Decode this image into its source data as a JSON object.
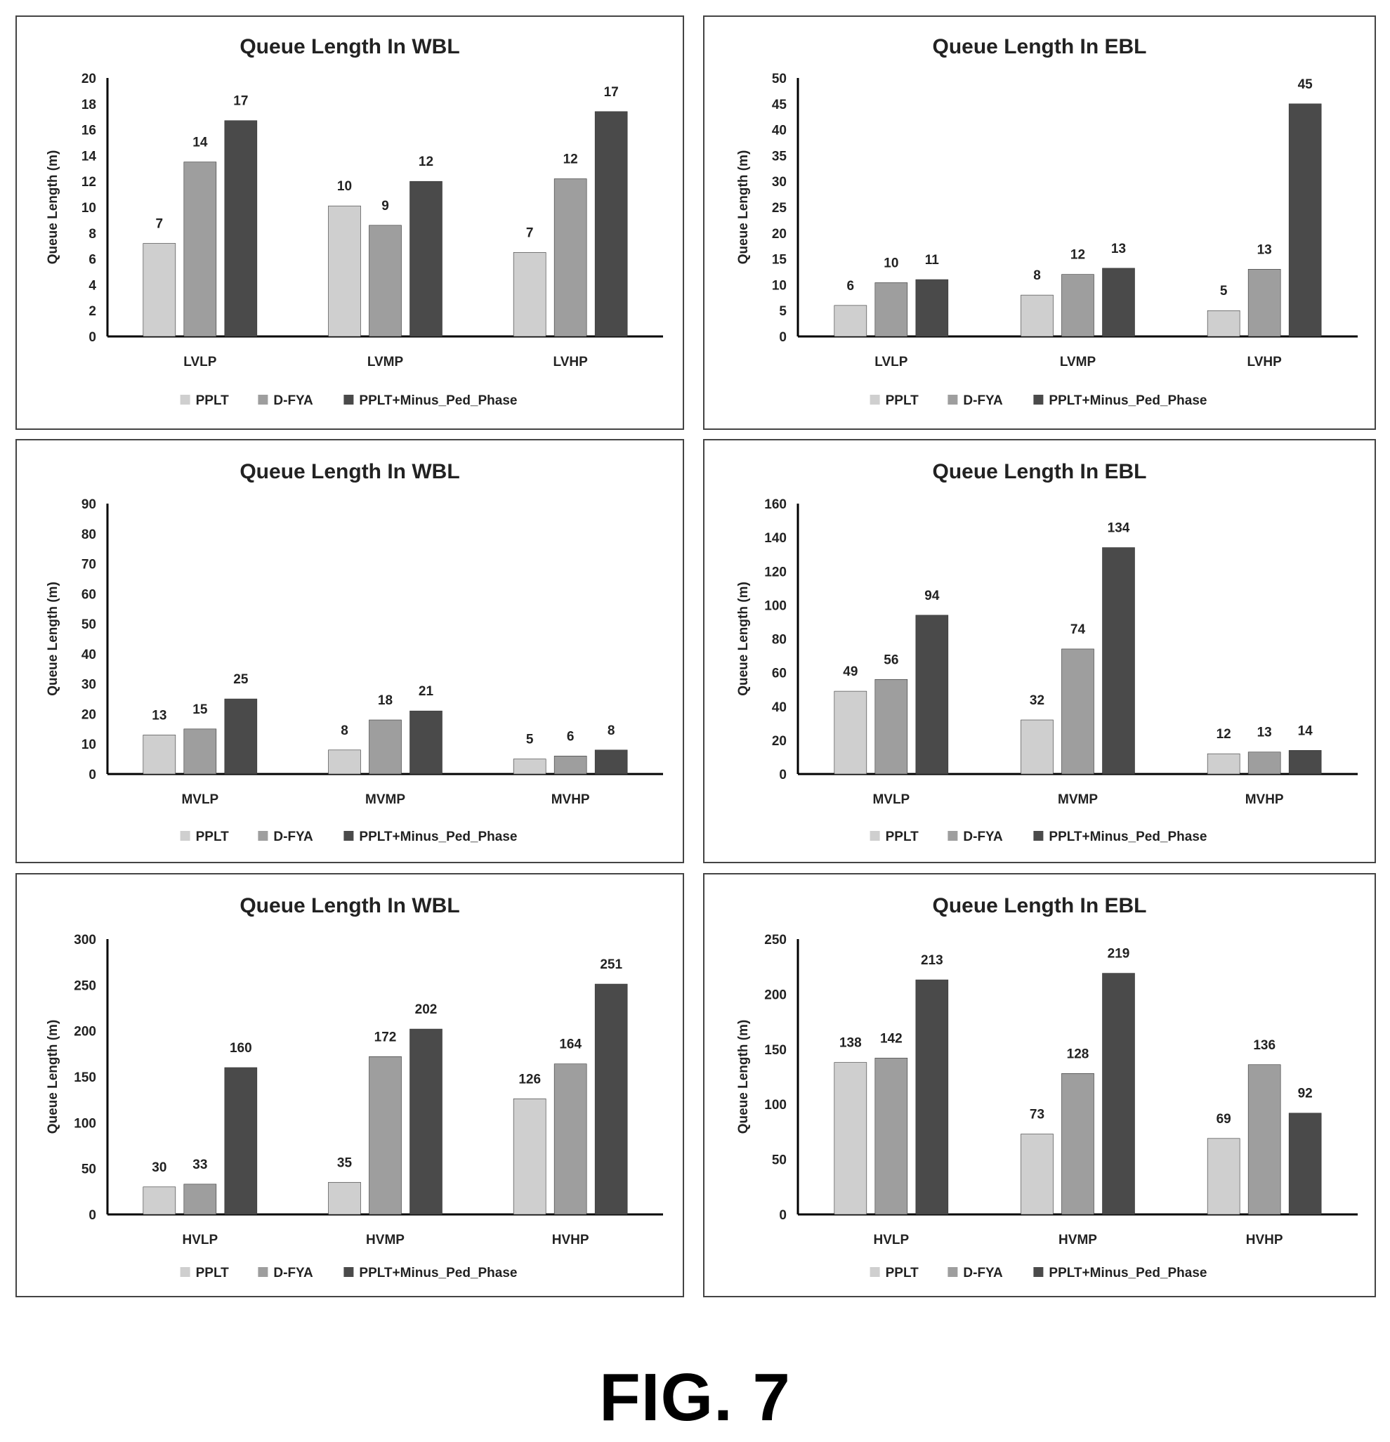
{
  "figure_label": "FIG. 7",
  "colors": {
    "PPLT": "#cfcfcf",
    "D-FYA": "#9e9e9e",
    "PPLT+Minus_Ped_Phase": "#4a4a4a",
    "axis": "#000000"
  },
  "chart_data": [
    {
      "type": "bar",
      "title": "Queue Length In WBL",
      "ylabel": "Queue Length (m)",
      "xlabel": "",
      "ylim": [
        0,
        20
      ],
      "yticks": [
        0,
        2,
        4,
        6,
        8,
        10,
        12,
        14,
        16,
        18,
        20
      ],
      "categories": [
        "LVLP",
        "LVMP",
        "LVHP"
      ],
      "series": [
        {
          "name": "PPLT",
          "values": [
            7.2,
            10.1,
            6.5
          ],
          "labels": [
            "7",
            "10",
            "7"
          ]
        },
        {
          "name": "D-FYA",
          "values": [
            13.5,
            8.6,
            12.2
          ],
          "labels": [
            "14",
            "9",
            "12"
          ]
        },
        {
          "name": "PPLT+Minus_Ped_Phase",
          "values": [
            16.7,
            12.0,
            17.4
          ],
          "labels": [
            "17",
            "12",
            "17"
          ]
        }
      ],
      "legend": "bottom"
    },
    {
      "type": "bar",
      "title": "Queue Length In EBL",
      "ylabel": "Queue Length (m)",
      "xlabel": "",
      "ylim": [
        0,
        50
      ],
      "yticks": [
        0,
        5,
        10,
        15,
        20,
        25,
        30,
        35,
        40,
        45,
        50
      ],
      "categories": [
        "LVLP",
        "LVMP",
        "LVHP"
      ],
      "series": [
        {
          "name": "PPLT",
          "values": [
            6,
            8,
            5
          ],
          "labels": [
            "6",
            "8",
            "5"
          ]
        },
        {
          "name": "D-FYA",
          "values": [
            10.4,
            12,
            13
          ],
          "labels": [
            "10",
            "12",
            "13"
          ]
        },
        {
          "name": "PPLT+Minus_Ped_Phase",
          "values": [
            11,
            13.2,
            45
          ],
          "labels": [
            "11",
            "13",
            "45"
          ]
        }
      ],
      "legend": "bottom"
    },
    {
      "type": "bar",
      "title": "Queue Length In WBL",
      "ylabel": "Queue Length (m)",
      "xlabel": "",
      "ylim": [
        0,
        90
      ],
      "yticks": [
        0,
        10,
        20,
        30,
        40,
        50,
        60,
        70,
        80,
        90
      ],
      "categories": [
        "MVLP",
        "MVMP",
        "MVHP"
      ],
      "series": [
        {
          "name": "PPLT",
          "values": [
            13,
            8,
            5
          ],
          "labels": [
            "13",
            "8",
            "5"
          ]
        },
        {
          "name": "D-FYA",
          "values": [
            15,
            18,
            6
          ],
          "labels": [
            "15",
            "18",
            "6"
          ]
        },
        {
          "name": "PPLT+Minus_Ped_Phase",
          "values": [
            25,
            21,
            8
          ],
          "labels": [
            "25",
            "21",
            "8"
          ]
        }
      ],
      "legend": "bottom"
    },
    {
      "type": "bar",
      "title": "Queue Length In EBL",
      "ylabel": "Queue Length (m)",
      "xlabel": "",
      "ylim": [
        0,
        160
      ],
      "yticks": [
        0,
        20,
        40,
        60,
        80,
        100,
        120,
        140,
        160
      ],
      "categories": [
        "MVLP",
        "MVMP",
        "MVHP"
      ],
      "series": [
        {
          "name": "PPLT",
          "values": [
            49,
            32,
            12
          ],
          "labels": [
            "49",
            "32",
            "12"
          ]
        },
        {
          "name": "D-FYA",
          "values": [
            56,
            74,
            13
          ],
          "labels": [
            "56",
            "74",
            "13"
          ]
        },
        {
          "name": "PPLT+Minus_Ped_Phase",
          "values": [
            94,
            134,
            14
          ],
          "labels": [
            "94",
            "134",
            "14"
          ]
        }
      ],
      "legend": "bottom"
    },
    {
      "type": "bar",
      "title": "Queue Length In WBL",
      "ylabel": "Queue Length (m)",
      "xlabel": "",
      "ylim": [
        0,
        300
      ],
      "yticks": [
        0,
        50,
        100,
        150,
        200,
        250,
        300
      ],
      "categories": [
        "HVLP",
        "HVMP",
        "HVHP"
      ],
      "series": [
        {
          "name": "PPLT",
          "values": [
            30,
            35,
            126
          ],
          "labels": [
            "30",
            "35",
            "126"
          ]
        },
        {
          "name": "D-FYA",
          "values": [
            33,
            172,
            164
          ],
          "labels": [
            "33",
            "172",
            "164"
          ]
        },
        {
          "name": "PPLT+Minus_Ped_Phase",
          "values": [
            160,
            202,
            251
          ],
          "labels": [
            "160",
            "202",
            "251"
          ]
        }
      ],
      "legend": "bottom"
    },
    {
      "type": "bar",
      "title": "Queue Length In EBL",
      "ylabel": "Queue Length (m)",
      "xlabel": "",
      "ylim": [
        0,
        250
      ],
      "yticks": [
        0,
        50,
        100,
        150,
        200,
        250
      ],
      "categories": [
        "HVLP",
        "HVMP",
        "HVHP"
      ],
      "series": [
        {
          "name": "PPLT",
          "values": [
            138,
            73,
            69
          ],
          "labels": [
            "138",
            "73",
            "69"
          ]
        },
        {
          "name": "D-FYA",
          "values": [
            142,
            128,
            136
          ],
          "labels": [
            "142",
            "128",
            "136"
          ]
        },
        {
          "name": "PPLT+Minus_Ped_Phase",
          "values": [
            213,
            219,
            92
          ],
          "labels": [
            "213",
            "219",
            "92"
          ]
        }
      ],
      "legend": "bottom"
    }
  ]
}
